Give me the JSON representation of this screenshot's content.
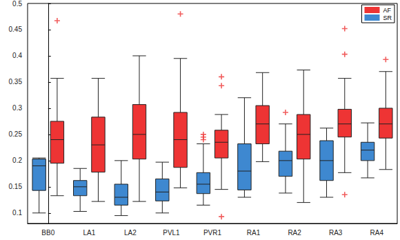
{
  "chart_data": {
    "type": "boxplot",
    "categories": [
      "BB0",
      "LA1",
      "LA2",
      "PVL1",
      "PVR1",
      "RA1",
      "RA2",
      "RA3",
      "RA4"
    ],
    "series": [
      {
        "name": "AF",
        "color": "#ee3434",
        "values": [
          [
            0.133,
            0.195,
            0.24,
            0.275,
            0.357
          ],
          [
            0.122,
            0.178,
            0.23,
            0.283,
            0.357
          ],
          [
            0.122,
            0.203,
            0.25,
            0.307,
            0.4
          ],
          [
            0.148,
            0.187,
            0.24,
            0.292,
            0.395
          ],
          [
            0.145,
            0.205,
            0.235,
            0.258,
            0.288
          ],
          [
            0.198,
            0.232,
            0.27,
            0.305,
            0.368
          ],
          [
            0.12,
            0.203,
            0.25,
            0.288,
            0.373
          ],
          [
            0.177,
            0.245,
            0.27,
            0.298,
            0.357
          ],
          [
            0.183,
            0.243,
            0.27,
            0.3,
            0.37
          ]
        ],
        "outliers": [
          [
            0.467
          ],
          [],
          [],
          [
            0.48
          ],
          [
            0.093,
            0.343,
            0.36
          ],
          [],
          [],
          [
            0.135,
            0.403,
            0.452
          ],
          [
            0.393
          ]
        ]
      },
      {
        "name": "SR",
        "color": "#3e88d0",
        "values": [
          [
            0.1,
            0.143,
            0.19,
            0.203,
            0.205
          ],
          [
            0.103,
            0.133,
            0.15,
            0.162,
            0.185
          ],
          [
            0.095,
            0.115,
            0.13,
            0.155,
            0.2
          ],
          [
            0.1,
            0.123,
            0.14,
            0.165,
            0.197
          ],
          [
            0.115,
            0.137,
            0.155,
            0.177,
            0.232
          ],
          [
            0.13,
            0.144,
            0.18,
            0.232,
            0.32
          ],
          [
            0.138,
            0.17,
            0.2,
            0.218,
            0.27
          ],
          [
            0.13,
            0.162,
            0.2,
            0.238,
            0.262
          ],
          [
            0.167,
            0.2,
            0.22,
            0.235,
            0.272
          ]
        ],
        "outliers": [
          [],
          [],
          [],
          [],
          [
            0.24,
            0.245,
            0.25
          ],
          [],
          [
            0.292
          ],
          [],
          []
        ]
      }
    ],
    "ylim": [
      0.08,
      0.5
    ],
    "yticks": [
      0.1,
      0.15,
      0.2,
      0.25,
      0.3,
      0.35,
      0.4,
      0.45,
      0.5
    ],
    "legend": "upper right",
    "marker": "+",
    "grid": false
  }
}
